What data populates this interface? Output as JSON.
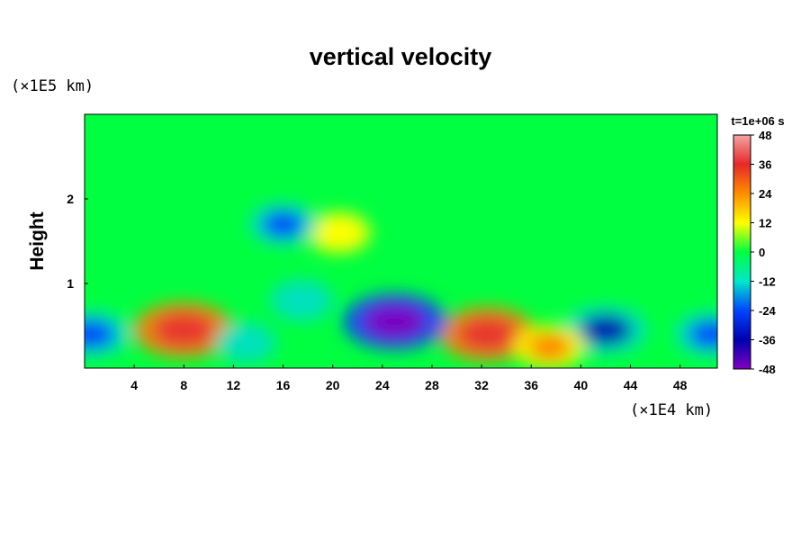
{
  "chart_data": {
    "type": "heatmap",
    "title": "vertical velocity",
    "ylabel": "Height",
    "x_unit": "(×1E4 km)",
    "y_unit": "(×1E5 km)",
    "time_label": "t=1e+06 s",
    "xlim": [
      0,
      51
    ],
    "ylim": [
      0,
      3
    ],
    "xticks": [
      4,
      8,
      12,
      16,
      20,
      24,
      28,
      32,
      36,
      40,
      44,
      48
    ],
    "yticks": [
      1,
      2
    ],
    "colorbar": {
      "range": [
        -48,
        48
      ],
      "ticks": [
        48,
        36,
        24,
        12,
        0,
        -12,
        -24,
        -36,
        -48
      ],
      "colors": [
        "#f0a0a0",
        "#e83030",
        "#ff8000",
        "#ffff00",
        "#00ff40",
        "#00e0c0",
        "#0040ff",
        "#0000b0",
        "#8000c0"
      ]
    },
    "features": [
      {
        "x": 8.0,
        "y": 0.45,
        "value": 42
      },
      {
        "x": 32.5,
        "y": 0.4,
        "value": 40
      },
      {
        "x": 25.0,
        "y": 0.55,
        "value": -44
      },
      {
        "x": 42.0,
        "y": 0.45,
        "value": -30
      },
      {
        "x": 0.5,
        "y": 0.4,
        "value": -26
      },
      {
        "x": 50.5,
        "y": 0.4,
        "value": -22
      },
      {
        "x": 20.5,
        "y": 1.6,
        "value": 14
      },
      {
        "x": 16.0,
        "y": 1.7,
        "value": -18
      },
      {
        "x": 17.5,
        "y": 0.8,
        "value": -14
      },
      {
        "x": 13.0,
        "y": 0.3,
        "value": -12
      },
      {
        "x": 37.5,
        "y": 0.25,
        "value": 20
      }
    ]
  }
}
